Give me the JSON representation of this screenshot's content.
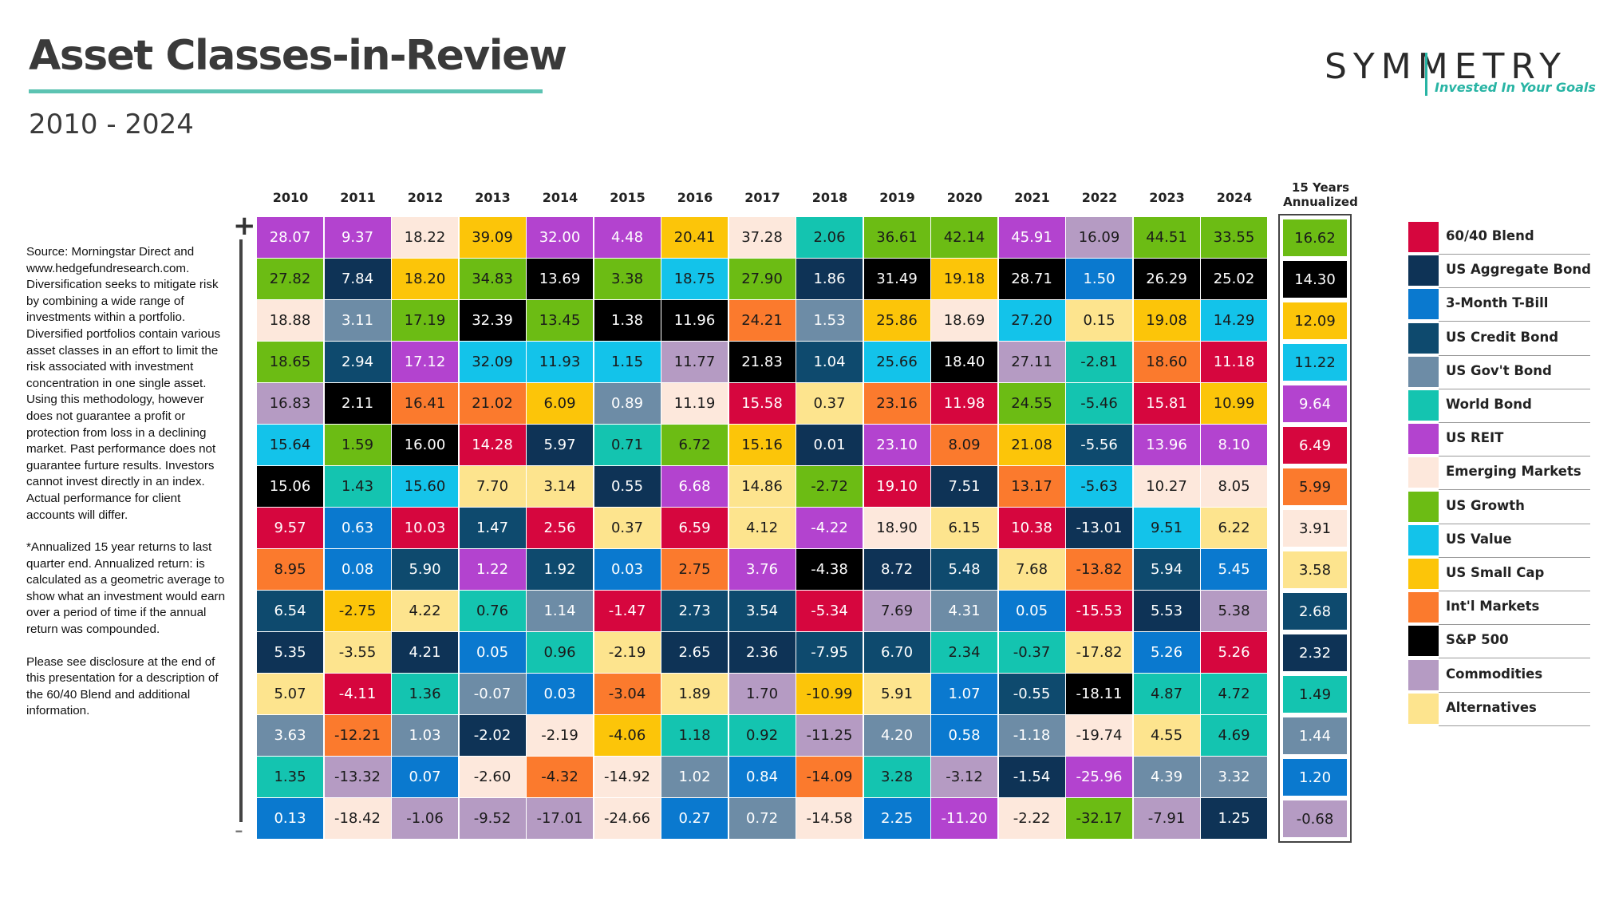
{
  "header": {
    "title": "Asset Classes-in-Review",
    "subtitle": "2010 - 2024",
    "logo_word": "SYMMETRY",
    "logo_tagline": "Invested In Your Goals"
  },
  "source_note": [
    "Source: Morningstar Direct and www.hedgefundresearch.com. Diversification seeks to mitigate risk by combining a wide range of investments within a portfolio. Diversified portfolios contain various asset classes in an effort to limit the risk associated with investment concentration in one single asset. Using this methodology, however does not guarantee a profit or protection from loss in a declining market. Past performance does not guarantee furture results. Investors cannot invest directly in an index. Actual performance for client accounts will differ.",
    "*Annualized 15 year returns to last quarter end. Annualized return: is calculated as a geometric average to show what an investment would earn over a period of time if the annual return was compounded.",
    "Please see disclosure at the end of this presentation  for a description of the 60/40 Blend and additional information."
  ],
  "axis": {
    "plus": "+",
    "minus": "-"
  },
  "colors": {
    "60/40 Blend": "#d6063e",
    "US Aggregate Bond": "#0e3356",
    "3-Month T-Bill": "#0a79cf",
    "US Credit Bond": "#0e4a6e",
    "US Gov't Bond": "#6d8ca6",
    "World Bond": "#14c4b0",
    "US REIT": "#b343cf",
    "Emerging Markets": "#fde8dc",
    "US Growth": "#6cbc14",
    "US Value": "#13c3ea",
    "US Small Cap": "#fcc509",
    "Int'l Markets": "#fb7a2d",
    "S&P 500": "#000000",
    "Commodities": "#b59bc3",
    "Alternatives": "#fde48e"
  },
  "chart_data": {
    "type": "table",
    "title": "Asset Classes-in-Review",
    "subtitle": "2010 - 2024",
    "years": [
      "2010",
      "2011",
      "2012",
      "2013",
      "2014",
      "2015",
      "2016",
      "2017",
      "2018",
      "2019",
      "2020",
      "2021",
      "2022",
      "2023",
      "2024"
    ],
    "annualized_header": "15 Years Annualized",
    "columns": [
      [
        [
          "US REIT",
          "28.07"
        ],
        [
          "US Growth",
          "27.82"
        ],
        [
          "Emerging Markets",
          "18.88"
        ],
        [
          "US Growth",
          "18.65"
        ],
        [
          "Commodities",
          "16.83"
        ],
        [
          "US Value",
          "15.64"
        ],
        [
          "S&P 500",
          "15.06"
        ],
        [
          "60/40 Blend",
          "9.57"
        ],
        [
          "Int'l Markets",
          "8.95"
        ],
        [
          "US Credit Bond",
          "6.54"
        ],
        [
          "US Aggregate Bond",
          "5.35"
        ],
        [
          "Alternatives",
          "5.07"
        ],
        [
          "US Gov't Bond",
          "3.63"
        ],
        [
          "World Bond",
          "1.35"
        ],
        [
          "3-Month T-Bill",
          "0.13"
        ]
      ],
      [
        [
          "US REIT",
          "9.37"
        ],
        [
          "US Aggregate Bond",
          "7.84"
        ],
        [
          "US Gov't Bond",
          "3.11"
        ],
        [
          "US Credit Bond",
          "2.94"
        ],
        [
          "S&P 500",
          "2.11"
        ],
        [
          "US Growth",
          "1.59"
        ],
        [
          "World Bond",
          "1.43"
        ],
        [
          "3-Month T-Bill",
          "0.63"
        ],
        [
          "3-Month T-Bill",
          "0.08"
        ],
        [
          "US Small Cap",
          "-2.75"
        ],
        [
          "Alternatives",
          "-3.55"
        ],
        [
          "60/40 Blend",
          "-4.11"
        ],
        [
          "Int'l Markets",
          "-12.21"
        ],
        [
          "Commodities",
          "-13.32"
        ],
        [
          "Emerging Markets",
          "-18.42"
        ]
      ],
      [
        [
          "Emerging Markets",
          "18.22"
        ],
        [
          "US Small Cap",
          "18.20"
        ],
        [
          "US Growth",
          "17.19"
        ],
        [
          "US REIT",
          "17.12"
        ],
        [
          "Int'l Markets",
          "16.41"
        ],
        [
          "S&P 500",
          "16.00"
        ],
        [
          "US Value",
          "15.60"
        ],
        [
          "60/40 Blend",
          "10.03"
        ],
        [
          "US Credit Bond",
          "5.90"
        ],
        [
          "Alternatives",
          "4.22"
        ],
        [
          "US Aggregate Bond",
          "4.21"
        ],
        [
          "World Bond",
          "1.36"
        ],
        [
          "US Gov't Bond",
          "1.03"
        ],
        [
          "3-Month T-Bill",
          "0.07"
        ],
        [
          "Commodities",
          "-1.06"
        ]
      ],
      [
        [
          "US Small Cap",
          "39.09"
        ],
        [
          "US Growth",
          "34.83"
        ],
        [
          "S&P 500",
          "32.39"
        ],
        [
          "US Value",
          "32.09"
        ],
        [
          "Int'l Markets",
          "21.02"
        ],
        [
          "60/40 Blend",
          "14.28"
        ],
        [
          "Alternatives",
          "7.70"
        ],
        [
          "US Credit Bond",
          "1.47"
        ],
        [
          "US REIT",
          "1.22"
        ],
        [
          "World Bond",
          "0.76"
        ],
        [
          "3-Month T-Bill",
          "0.05"
        ],
        [
          "US Gov't Bond",
          "-0.07"
        ],
        [
          "US Aggregate Bond",
          "-2.02"
        ],
        [
          "Emerging Markets",
          "-2.60"
        ],
        [
          "Commodities",
          "-9.52"
        ]
      ],
      [
        [
          "US REIT",
          "32.00"
        ],
        [
          "S&P 500",
          "13.69"
        ],
        [
          "US Growth",
          "13.45"
        ],
        [
          "US Value",
          "11.93"
        ],
        [
          "US Small Cap",
          "6.09"
        ],
        [
          "US Aggregate Bond",
          "5.97"
        ],
        [
          "Alternatives",
          "3.14"
        ],
        [
          "60/40 Blend",
          "2.56"
        ],
        [
          "US Credit Bond",
          "1.92"
        ],
        [
          "US Gov't Bond",
          "1.14"
        ],
        [
          "World Bond",
          "0.96"
        ],
        [
          "3-Month T-Bill",
          "0.03"
        ],
        [
          "Emerging Markets",
          "-2.19"
        ],
        [
          "Int'l Markets",
          "-4.32"
        ],
        [
          "Commodities",
          "-17.01"
        ]
      ],
      [
        [
          "US REIT",
          "4.48"
        ],
        [
          "US Growth",
          "3.38"
        ],
        [
          "S&P 500",
          "1.38"
        ],
        [
          "US Value",
          "1.15"
        ],
        [
          "US Gov't Bond",
          "0.89"
        ],
        [
          "World Bond",
          "0.71"
        ],
        [
          "US Aggregate Bond",
          "0.55"
        ],
        [
          "Alternatives",
          "0.37"
        ],
        [
          "3-Month T-Bill",
          "0.03"
        ],
        [
          "60/40 Blend",
          "-1.47"
        ],
        [
          "Alternatives",
          "-2.19"
        ],
        [
          "Int'l Markets",
          "-3.04"
        ],
        [
          "US Small Cap",
          "-4.06"
        ],
        [
          "Emerging Markets",
          "-14.92"
        ],
        [
          "Emerging Markets",
          "-24.66"
        ]
      ],
      [
        [
          "US Small Cap",
          "20.41"
        ],
        [
          "US Value",
          "18.75"
        ],
        [
          "S&P 500",
          "11.96"
        ],
        [
          "Commodities",
          "11.77"
        ],
        [
          "Emerging Markets",
          "11.19"
        ],
        [
          "US Growth",
          "6.72"
        ],
        [
          "US REIT",
          "6.68"
        ],
        [
          "60/40 Blend",
          "6.59"
        ],
        [
          "Int'l Markets",
          "2.75"
        ],
        [
          "US Credit Bond",
          "2.73"
        ],
        [
          "US Aggregate Bond",
          "2.65"
        ],
        [
          "Alternatives",
          "1.89"
        ],
        [
          "World Bond",
          "1.18"
        ],
        [
          "US Gov't Bond",
          "1.02"
        ],
        [
          "3-Month T-Bill",
          "0.27"
        ]
      ],
      [
        [
          "Emerging Markets",
          "37.28"
        ],
        [
          "US Growth",
          "27.90"
        ],
        [
          "Int'l Markets",
          "24.21"
        ],
        [
          "S&P 500",
          "21.83"
        ],
        [
          "60/40 Blend",
          "15.58"
        ],
        [
          "US Small Cap",
          "15.16"
        ],
        [
          "Alternatives",
          "14.86"
        ],
        [
          "Alternatives",
          "4.12"
        ],
        [
          "US REIT",
          "3.76"
        ],
        [
          "US Credit Bond",
          "3.54"
        ],
        [
          "US Aggregate Bond",
          "2.36"
        ],
        [
          "Commodities",
          "1.70"
        ],
        [
          "World Bond",
          "0.92"
        ],
        [
          "3-Month T-Bill",
          "0.84"
        ],
        [
          "US Gov't Bond",
          "0.72"
        ]
      ],
      [
        [
          "World Bond",
          "2.06"
        ],
        [
          "US Aggregate Bond",
          "1.86"
        ],
        [
          "US Gov't Bond",
          "1.53"
        ],
        [
          "US Credit Bond",
          "1.04"
        ],
        [
          "Alternatives",
          "0.37"
        ],
        [
          "US Aggregate Bond",
          "0.01"
        ],
        [
          "US Growth",
          "-2.72"
        ],
        [
          "US REIT",
          "-4.22"
        ],
        [
          "S&P 500",
          "-4.38"
        ],
        [
          "60/40 Blend",
          "-5.34"
        ],
        [
          "US Credit Bond",
          "-7.95"
        ],
        [
          "US Small Cap",
          "-10.99"
        ],
        [
          "Commodities",
          "-11.25"
        ],
        [
          "Int'l Markets",
          "-14.09"
        ],
        [
          "Emerging Markets",
          "-14.58"
        ]
      ],
      [
        [
          "US Growth",
          "36.61"
        ],
        [
          "S&P 500",
          "31.49"
        ],
        [
          "US Small Cap",
          "25.86"
        ],
        [
          "US Value",
          "25.66"
        ],
        [
          "Int'l Markets",
          "23.16"
        ],
        [
          "US REIT",
          "23.10"
        ],
        [
          "60/40 Blend",
          "19.10"
        ],
        [
          "Emerging Markets",
          "18.90"
        ],
        [
          "US Aggregate Bond",
          "8.72"
        ],
        [
          "Commodities",
          "7.69"
        ],
        [
          "US Credit Bond",
          "6.70"
        ],
        [
          "Alternatives",
          "5.91"
        ],
        [
          "US Gov't Bond",
          "4.20"
        ],
        [
          "World Bond",
          "3.28"
        ],
        [
          "3-Month T-Bill",
          "2.25"
        ]
      ],
      [
        [
          "US Growth",
          "42.14"
        ],
        [
          "US Small Cap",
          "19.18"
        ],
        [
          "Emerging Markets",
          "18.69"
        ],
        [
          "S&P 500",
          "18.40"
        ],
        [
          "60/40 Blend",
          "11.98"
        ],
        [
          "Int'l Markets",
          "8.09"
        ],
        [
          "US Aggregate Bond",
          "7.51"
        ],
        [
          "Alternatives",
          "6.15"
        ],
        [
          "US Credit Bond",
          "5.48"
        ],
        [
          "US Gov't Bond",
          "4.31"
        ],
        [
          "World Bond",
          "2.34"
        ],
        [
          "3-Month T-Bill",
          "1.07"
        ],
        [
          "3-Month T-Bill",
          "0.58"
        ],
        [
          "Commodities",
          "-3.12"
        ],
        [
          "US REIT",
          "-11.20"
        ]
      ],
      [
        [
          "US REIT",
          "45.91"
        ],
        [
          "S&P 500",
          "28.71"
        ],
        [
          "US Value",
          "27.20"
        ],
        [
          "Commodities",
          "27.11"
        ],
        [
          "US Growth",
          "24.55"
        ],
        [
          "US Small Cap",
          "21.08"
        ],
        [
          "Int'l Markets",
          "13.17"
        ],
        [
          "60/40 Blend",
          "10.38"
        ],
        [
          "Alternatives",
          "7.68"
        ],
        [
          "3-Month T-Bill",
          "0.05"
        ],
        [
          "World Bond",
          "-0.37"
        ],
        [
          "US Credit Bond",
          "-0.55"
        ],
        [
          "US Gov't Bond",
          "-1.18"
        ],
        [
          "US Aggregate Bond",
          "-1.54"
        ],
        [
          "Emerging Markets",
          "-2.22"
        ]
      ],
      [
        [
          "Commodities",
          "16.09"
        ],
        [
          "3-Month T-Bill",
          "1.50"
        ],
        [
          "Alternatives",
          "0.15"
        ],
        [
          "World Bond",
          "-2.81"
        ],
        [
          "World Bond",
          "-5.46"
        ],
        [
          "US Credit Bond",
          "-5.56"
        ],
        [
          "US Value",
          "-5.63"
        ],
        [
          "US Aggregate Bond",
          "-13.01"
        ],
        [
          "Int'l Markets",
          "-13.82"
        ],
        [
          "60/40 Blend",
          "-15.53"
        ],
        [
          "Alternatives",
          "-17.82"
        ],
        [
          "S&P 500",
          "-18.11"
        ],
        [
          "Emerging Markets",
          "-19.74"
        ],
        [
          "US REIT",
          "-25.96"
        ],
        [
          "US Growth",
          "-32.17"
        ]
      ],
      [
        [
          "US Growth",
          "44.51"
        ],
        [
          "S&P 500",
          "26.29"
        ],
        [
          "US Small Cap",
          "19.08"
        ],
        [
          "Int'l Markets",
          "18.60"
        ],
        [
          "60/40 Blend",
          "15.81"
        ],
        [
          "US REIT",
          "13.96"
        ],
        [
          "Emerging Markets",
          "10.27"
        ],
        [
          "US Value",
          "9.51"
        ],
        [
          "US Credit Bond",
          "5.94"
        ],
        [
          "US Aggregate Bond",
          "5.53"
        ],
        [
          "3-Month T-Bill",
          "5.26"
        ],
        [
          "World Bond",
          "4.87"
        ],
        [
          "Alternatives",
          "4.55"
        ],
        [
          "US Gov't Bond",
          "4.39"
        ],
        [
          "Commodities",
          "-7.91"
        ]
      ],
      [
        [
          "US Growth",
          "33.55"
        ],
        [
          "S&P 500",
          "25.02"
        ],
        [
          "US Value",
          "14.29"
        ],
        [
          "60/40 Blend",
          "11.18"
        ],
        [
          "US Small Cap",
          "10.99"
        ],
        [
          "US REIT",
          "8.10"
        ],
        [
          "Emerging Markets",
          "8.05"
        ],
        [
          "Alternatives",
          "6.22"
        ],
        [
          "3-Month T-Bill",
          "5.45"
        ],
        [
          "Commodities",
          "5.38"
        ],
        [
          "60/40 Blend",
          "5.26"
        ],
        [
          "World Bond",
          "4.72"
        ],
        [
          "World Bond",
          "4.69"
        ],
        [
          "US Gov't Bond",
          "3.32"
        ],
        [
          "US Aggregate Bond",
          "1.25"
        ]
      ]
    ],
    "annualized": [
      [
        "US Growth",
        "16.62"
      ],
      [
        "S&P 500",
        "14.30"
      ],
      [
        "US Small Cap",
        "12.09"
      ],
      [
        "US Value",
        "11.22"
      ],
      [
        "US REIT",
        "9.64"
      ],
      [
        "60/40 Blend",
        "6.49"
      ],
      [
        "Int'l Markets",
        "5.99"
      ],
      [
        "Emerging Markets",
        "3.91"
      ],
      [
        "Alternatives",
        "3.58"
      ],
      [
        "US Credit Bond",
        "2.68"
      ],
      [
        "US Aggregate Bond",
        "2.32"
      ],
      [
        "World Bond",
        "1.49"
      ],
      [
        "US Gov't Bond",
        "1.44"
      ],
      [
        "3-Month T-Bill",
        "1.20"
      ],
      [
        "Commodities",
        "-0.68"
      ]
    ],
    "legend": [
      "60/40 Blend",
      "US Aggregate Bond",
      "3-Month T-Bill",
      "US Credit Bond",
      "US Gov't Bond",
      "World Bond",
      "US REIT",
      "Emerging Markets",
      "US Growth",
      "US Value",
      "US Small Cap",
      "Int'l Markets",
      "S&P 500",
      "Commodities",
      "Alternatives"
    ]
  }
}
